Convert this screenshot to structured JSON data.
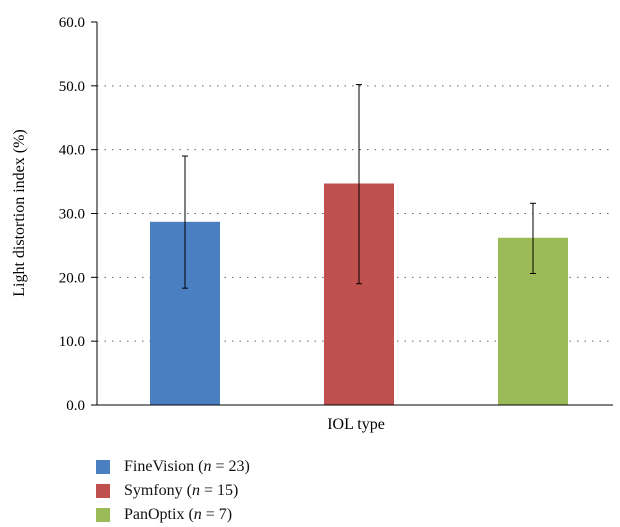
{
  "chart_data": {
    "type": "bar",
    "title": "",
    "xlabel": "IOL type",
    "ylabel": "Light distortion index (%)",
    "ylim": [
      0,
      60
    ],
    "yticks": [
      0,
      10,
      20,
      30,
      40,
      50,
      60
    ],
    "ytick_labels": [
      "0.0",
      "10.0",
      "20.0",
      "30.0",
      "40.0",
      "50.0",
      "60.0"
    ],
    "grid": "horizontal dotted",
    "legend_position": "bottom-left",
    "series": [
      {
        "name": "FineVision",
        "n_label": "n",
        "eq_label": " = 23)",
        "prefix": "FineVision (",
        "value": 28.7,
        "error_low": 18.3,
        "error_high": 39.0,
        "color": "#4a7fc1"
      },
      {
        "name": "Symfony",
        "n_label": "n",
        "eq_label": " = 15)",
        "prefix": "Symfony (",
        "value": 34.7,
        "error_low": 19.0,
        "error_high": 50.2,
        "color": "#c0504d"
      },
      {
        "name": "PanOptix",
        "n_label": "n",
        "eq_label": " = 7)",
        "prefix": "PanOptix (",
        "value": 26.2,
        "error_low": 20.6,
        "error_high": 31.6,
        "color": "#9bbb59"
      }
    ]
  }
}
